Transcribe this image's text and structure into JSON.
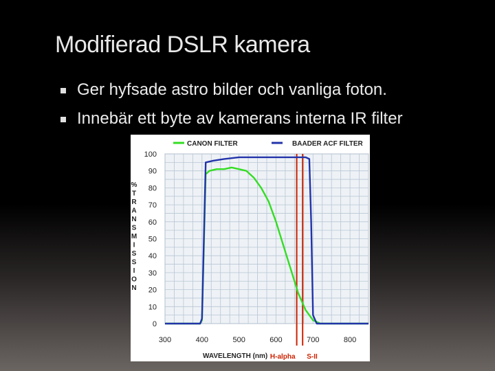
{
  "slide": {
    "title": "Modifierad DSLR kamera",
    "bullets": [
      "Ger hyfsade astro bilder och vanliga foton.",
      "Innebär ett byte av kamerans interna IR filter"
    ]
  },
  "chart_data": {
    "type": "line",
    "ylabel": "% TRANSMISSION",
    "xlabel": "WAVELENGTH (nm)",
    "xlim": [
      300,
      850
    ],
    "ylim": [
      0,
      100
    ],
    "xticks": [
      300,
      400,
      500,
      600,
      700,
      800
    ],
    "yticks": [
      0,
      10,
      20,
      30,
      40,
      50,
      60,
      70,
      80,
      90,
      100
    ],
    "grid": true,
    "legend_position": "top",
    "series": [
      {
        "name": "CANON FILTER",
        "color": "#33dd22",
        "x": [
          300,
          395,
          400,
          410,
          420,
          440,
          460,
          480,
          500,
          520,
          540,
          560,
          580,
          600,
          620,
          640,
          660,
          680,
          700,
          720,
          800,
          850
        ],
        "y": [
          0,
          0,
          2,
          88,
          90,
          91,
          91,
          92,
          91,
          90,
          86,
          80,
          72,
          60,
          46,
          32,
          18,
          8,
          2,
          0,
          0,
          0
        ]
      },
      {
        "name": "BAADER ACF FILTER",
        "color": "#2233aa",
        "x": [
          300,
          395,
          400,
          410,
          430,
          460,
          500,
          550,
          600,
          650,
          680,
          690,
          695,
          700,
          710,
          800,
          850
        ],
        "y": [
          0,
          0,
          3,
          95,
          96,
          97,
          98,
          98,
          98,
          98,
          98,
          97,
          60,
          5,
          0,
          0,
          0
        ]
      }
    ],
    "markers": [
      {
        "label": "H-alpha",
        "x": 656,
        "color": "#cc2200"
      },
      {
        "label": "S-II",
        "x": 672,
        "color": "#cc2200"
      }
    ]
  }
}
